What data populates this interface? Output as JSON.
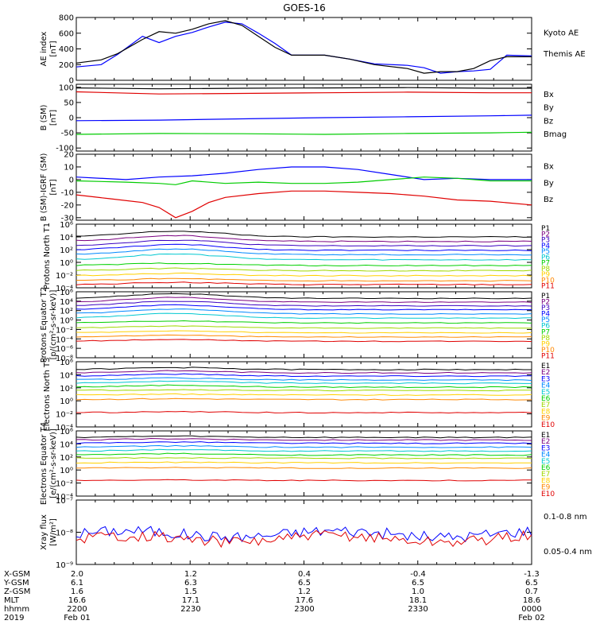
{
  "title": "GOES-16",
  "colors": {
    "black": "#000000",
    "blue": "#0000ff",
    "red": "#e00000",
    "green": "#00cc00",
    "p": [
      "#000000",
      "#7a0080",
      "#3a00c0",
      "#0000ff",
      "#0088ff",
      "#00c8d0",
      "#00d000",
      "#a0d800",
      "#ffd000",
      "#ff8800",
      "#e00000"
    ],
    "e": [
      "#000000",
      "#7a0080",
      "#0000ff",
      "#0088ff",
      "#00c8d0",
      "#00d000",
      "#a0d800",
      "#ffd000",
      "#ff8800",
      "#e00000"
    ]
  },
  "chart_data": [
    {
      "type": "line",
      "id": "ae",
      "ylabel": "AE index [nT]",
      "ylim": [
        0,
        800
      ],
      "ticks": [
        "800",
        "600",
        "400",
        "200",
        "0"
      ],
      "tick_values": [
        800,
        600,
        400,
        200,
        0
      ],
      "series": [
        {
          "name": "Kyoto AE",
          "color": "#0000ff",
          "points": [
            [
              0,
              170
            ],
            [
              3,
              200
            ],
            [
              5,
              330
            ],
            [
              8,
              560
            ],
            [
              10,
              480
            ],
            [
              12,
              560
            ],
            [
              14,
              610
            ],
            [
              16,
              680
            ],
            [
              18,
              740
            ],
            [
              20,
              720
            ],
            [
              22,
              600
            ],
            [
              24,
              470
            ],
            [
              26,
              320
            ],
            [
              30,
              320
            ],
            [
              33,
              270
            ],
            [
              36,
              210
            ],
            [
              40,
              190
            ],
            [
              42,
              160
            ],
            [
              44,
              90
            ],
            [
              46,
              110
            ],
            [
              48,
              120
            ],
            [
              50,
              140
            ],
            [
              52,
              320
            ],
            [
              55,
              310
            ]
          ]
        },
        {
          "name": "Themis AE",
          "color": "#000000",
          "points": [
            [
              0,
              220
            ],
            [
              3,
              260
            ],
            [
              5,
              340
            ],
            [
              8,
              520
            ],
            [
              10,
              620
            ],
            [
              12,
              600
            ],
            [
              14,
              650
            ],
            [
              16,
              720
            ],
            [
              18,
              760
            ],
            [
              20,
              700
            ],
            [
              22,
              560
            ],
            [
              24,
              420
            ],
            [
              26,
              320
            ],
            [
              30,
              320
            ],
            [
              33,
              270
            ],
            [
              36,
              200
            ],
            [
              40,
              150
            ],
            [
              42,
              90
            ],
            [
              44,
              110
            ],
            [
              46,
              110
            ],
            [
              48,
              150
            ],
            [
              50,
              250
            ],
            [
              52,
              300
            ],
            [
              55,
              300
            ]
          ]
        }
      ],
      "legend": [
        {
          "text": "Kyoto AE",
          "color": "#0000ff"
        },
        {
          "text": "Themis AE",
          "color": "#000000"
        }
      ]
    },
    {
      "type": "line",
      "id": "b",
      "ylabel": "B (SM) [nT]",
      "ylim": [
        -110,
        110
      ],
      "ticks": [
        "100",
        "50",
        "0",
        "-50",
        "-100"
      ],
      "tick_values": [
        100,
        50,
        0,
        -50,
        -100
      ],
      "series": [
        {
          "name": "Bx",
          "color": "#0000ff",
          "points": [
            [
              0,
              -10
            ],
            [
              10,
              -8
            ],
            [
              20,
              -4
            ],
            [
              30,
              0
            ],
            [
              40,
              3
            ],
            [
              50,
              6
            ],
            [
              55,
              8
            ]
          ]
        },
        {
          "name": "By",
          "color": "#00cc00",
          "points": [
            [
              0,
              -55
            ],
            [
              10,
              -52
            ],
            [
              20,
              -53
            ],
            [
              30,
              -55
            ],
            [
              40,
              -52
            ],
            [
              50,
              -50
            ],
            [
              55,
              -48
            ]
          ]
        },
        {
          "name": "Bz",
          "color": "#e00000",
          "points": [
            [
              0,
              85
            ],
            [
              10,
              78
            ],
            [
              20,
              80
            ],
            [
              30,
              82
            ],
            [
              40,
              84
            ],
            [
              50,
              82
            ],
            [
              55,
              82
            ]
          ]
        },
        {
          "name": "Bmag",
          "color": "#000000",
          "points": [
            [
              0,
              98
            ],
            [
              10,
              95
            ],
            [
              20,
              97
            ],
            [
              30,
              98
            ],
            [
              40,
              99
            ],
            [
              50,
              97
            ],
            [
              55,
              97
            ]
          ]
        }
      ],
      "legend": [
        {
          "text": "Bx",
          "color": "#0000ff"
        },
        {
          "text": "By",
          "color": "#00cc00"
        },
        {
          "text": "Bz",
          "color": "#e00000"
        },
        {
          "text": "Bmag",
          "color": "#000000"
        }
      ]
    },
    {
      "type": "line",
      "id": "dbigrf",
      "ylabel": "B (SM)-IGRF (SM) [nT]",
      "ylim": [
        -32,
        20
      ],
      "ticks": [
        "20",
        "10",
        "0",
        "-10",
        "-20",
        "-30"
      ],
      "tick_values": [
        20,
        10,
        0,
        -10,
        -20,
        -30
      ],
      "series": [
        {
          "name": "Bx",
          "color": "#0000ff",
          "points": [
            [
              0,
              2
            ],
            [
              6,
              0
            ],
            [
              10,
              2
            ],
            [
              14,
              3
            ],
            [
              18,
              5
            ],
            [
              22,
              8
            ],
            [
              26,
              10
            ],
            [
              30,
              10
            ],
            [
              34,
              8
            ],
            [
              38,
              4
            ],
            [
              42,
              0
            ],
            [
              46,
              1
            ],
            [
              50,
              0
            ],
            [
              55,
              0
            ]
          ]
        },
        {
          "name": "By",
          "color": "#00cc00",
          "points": [
            [
              0,
              -1
            ],
            [
              6,
              -2
            ],
            [
              10,
              -3
            ],
            [
              12,
              -4
            ],
            [
              14,
              -1
            ],
            [
              18,
              -3
            ],
            [
              22,
              -2
            ],
            [
              26,
              -3
            ],
            [
              30,
              -3
            ],
            [
              34,
              -2
            ],
            [
              38,
              0
            ],
            [
              42,
              2
            ],
            [
              46,
              1
            ],
            [
              50,
              -1
            ],
            [
              55,
              -1
            ]
          ]
        },
        {
          "name": "Bz",
          "color": "#e00000",
          "points": [
            [
              0,
              -12
            ],
            [
              4,
              -15
            ],
            [
              8,
              -18
            ],
            [
              10,
              -22
            ],
            [
              12,
              -30
            ],
            [
              14,
              -25
            ],
            [
              16,
              -18
            ],
            [
              18,
              -14
            ],
            [
              22,
              -11
            ],
            [
              26,
              -9
            ],
            [
              30,
              -9
            ],
            [
              34,
              -10
            ],
            [
              38,
              -11
            ],
            [
              42,
              -13
            ],
            [
              46,
              -16
            ],
            [
              50,
              -17
            ],
            [
              55,
              -20
            ]
          ]
        }
      ],
      "legend": [
        {
          "text": "Bx",
          "color": "#0000ff"
        },
        {
          "text": "By",
          "color": "#00cc00"
        },
        {
          "text": "Bz",
          "color": "#e00000"
        }
      ]
    },
    {
      "type": "line",
      "id": "protons_t1",
      "ylabel": "Protons North T1",
      "log": true,
      "ylim_exp": [
        -4,
        6
      ],
      "tick_exps": [
        6,
        4,
        2,
        0,
        -2,
        -4
      ],
      "base_levels": [
        4.0,
        3.3,
        2.6,
        1.9,
        1.2,
        0.4,
        -0.5,
        -1.3,
        -2.1,
        -2.9,
        -3.5
      ],
      "hump": 0.9,
      "legend_labels": [
        "P1",
        "P2",
        "P3",
        "P4",
        "P5",
        "P6",
        "P7",
        "P8",
        "P9",
        "P10",
        "P11"
      ]
    },
    {
      "type": "line",
      "id": "protons_t2",
      "ylabel": "Protons Equator T2 [p/(cm²-s-sr-keV)]",
      "log": true,
      "ylim_exp": [
        -8,
        6
      ],
      "tick_exps": [
        6,
        4,
        2,
        0,
        -2,
        -4,
        -6,
        -8
      ],
      "base_levels": [
        4.6,
        3.8,
        3.0,
        2.2,
        1.3,
        0.4,
        -0.6,
        -1.7,
        -2.7,
        -3.6,
        -4.5
      ],
      "hump": 1.0,
      "legend_labels": [
        "P1",
        "P2",
        "P3",
        "P4",
        "P5",
        "P6",
        "P7",
        "P8",
        "P9",
        "P10",
        "P11"
      ]
    },
    {
      "type": "line",
      "id": "electrons_t3",
      "ylabel": "Electrons North T3",
      "log": true,
      "ylim_exp": [
        -4,
        6
      ],
      "tick_exps": [
        6,
        4,
        2,
        0,
        -2,
        -4
      ],
      "base_levels": [
        4.8,
        4.3,
        3.8,
        3.2,
        2.7,
        2.1,
        1.6,
        0.9,
        0.2,
        -1.8
      ],
      "hump": 0.3,
      "legend_labels": [
        "E1",
        "E2",
        "E3",
        "E4",
        "E5",
        "E6",
        "E7",
        "E8",
        "E9",
        "E10"
      ]
    },
    {
      "type": "line",
      "id": "electrons_t4",
      "ylabel": "Electrons Equator T4 [e/(cm²-s-sr-keV)]",
      "log": true,
      "ylim_exp": [
        -4,
        6
      ],
      "tick_exps": [
        6,
        4,
        2,
        0,
        -2,
        -4
      ],
      "base_levels": [
        5.0,
        4.6,
        4.1,
        3.5,
        2.9,
        2.3,
        1.8,
        1.1,
        0.3,
        -1.6
      ],
      "hump": 0.2,
      "legend_labels": [
        "E1",
        "E2",
        "E3",
        "E4",
        "E5",
        "E6",
        "E7",
        "E8",
        "E9",
        "E10"
      ]
    },
    {
      "type": "line",
      "id": "xray",
      "ylabel": "Xray flux [W/m²]",
      "log": true,
      "ylim_exp": [
        -9,
        -7
      ],
      "tick_labels": [
        "10⁻⁷",
        "10⁻⁸",
        "10⁻⁹"
      ],
      "tick_exps": [
        -7,
        -8,
        -9
      ],
      "series": [
        {
          "name": "0.05-0.4 nm",
          "color": "#0000ff",
          "base": -8.05
        },
        {
          "name": "0.1-0.8 nm",
          "color": "#e00000",
          "base": -8.2
        }
      ],
      "legend": [
        {
          "text": "0.1-0.8 nm",
          "color": "#e00000"
        },
        {
          "text": "0.05-0.4 nm",
          "color": "#0000ff"
        }
      ]
    }
  ],
  "xaxis": {
    "rows": [
      {
        "label": "X-GSM",
        "values": [
          "2.0",
          "1.2",
          "0.4",
          "-0.4",
          "-1.3"
        ]
      },
      {
        "label": "Y-GSM",
        "values": [
          "6.1",
          "6.3",
          "6.5",
          "6.5",
          "6.5"
        ]
      },
      {
        "label": "Z-GSM",
        "values": [
          "1.6",
          "1.5",
          "1.2",
          "1.0",
          "0.7"
        ]
      },
      {
        "label": "MLT",
        "values": [
          "16.6",
          "17.1",
          "17.6",
          "18.1",
          "18.6"
        ]
      },
      {
        "label": "hhmm",
        "values": [
          "2200",
          "2230",
          "2300",
          "2330",
          "0000"
        ]
      },
      {
        "label": "2019",
        "values": [
          "Feb 01",
          "",
          "",
          "",
          "Feb 02"
        ]
      }
    ]
  }
}
